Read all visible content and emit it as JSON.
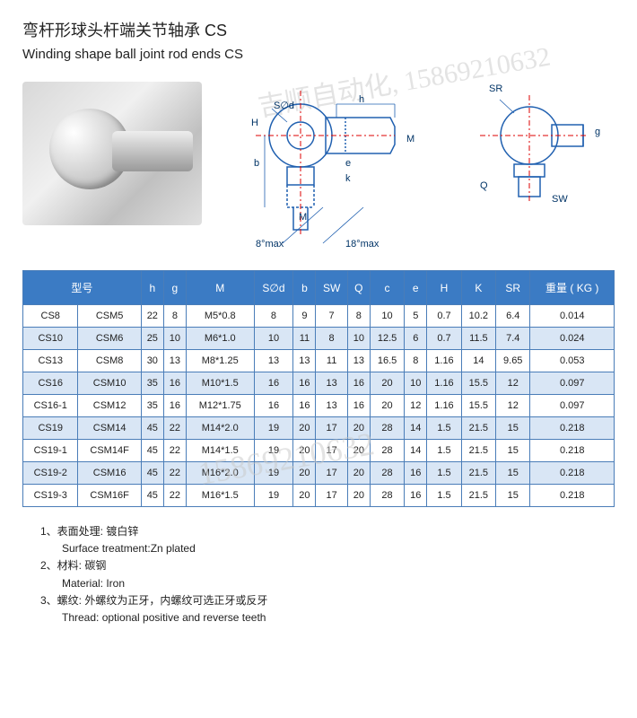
{
  "title_cn": "弯杆形球头杆端关节轴承 CS",
  "title_en": "Winding shape ball joint rod ends CS",
  "watermark": "吉顺自动化, 15869210632",
  "watermark2": "15869210632",
  "diagram_labels": {
    "h": "h",
    "Sd": "S∅d",
    "H": "H",
    "b": "b",
    "M": "M",
    "e": "e",
    "k": "k",
    "angle1": "8°max",
    "angle2": "18°max",
    "SR": "SR",
    "Q": "Q",
    "SW": "SW",
    "g": "g"
  },
  "columns": [
    "型号",
    "",
    "h",
    "g",
    "M",
    "S∅d",
    "b",
    "SW",
    "Q",
    "c",
    "e",
    "H",
    "K",
    "SR",
    "重量 ( KG )"
  ],
  "rows": [
    [
      "CS8",
      "CSM5",
      "22",
      "8",
      "M5*0.8",
      "8",
      "9",
      "7",
      "8",
      "10",
      "5",
      "0.7",
      "10.2",
      "6.4",
      "0.014"
    ],
    [
      "CS10",
      "CSM6",
      "25",
      "10",
      "M6*1.0",
      "10",
      "11",
      "8",
      "10",
      "12.5",
      "6",
      "0.7",
      "11.5",
      "7.4",
      "0.024"
    ],
    [
      "CS13",
      "CSM8",
      "30",
      "13",
      "M8*1.25",
      "13",
      "13",
      "11",
      "13",
      "16.5",
      "8",
      "1.16",
      "14",
      "9.65",
      "0.053"
    ],
    [
      "CS16",
      "CSM10",
      "35",
      "16",
      "M10*1.5",
      "16",
      "16",
      "13",
      "16",
      "20",
      "10",
      "1.16",
      "15.5",
      "12",
      "0.097"
    ],
    [
      "CS16-1",
      "CSM12",
      "35",
      "16",
      "M12*1.75",
      "16",
      "16",
      "13",
      "16",
      "20",
      "12",
      "1.16",
      "15.5",
      "12",
      "0.097"
    ],
    [
      "CS19",
      "CSM14",
      "45",
      "22",
      "M14*2.0",
      "19",
      "20",
      "17",
      "20",
      "28",
      "14",
      "1.5",
      "21.5",
      "15",
      "0.218"
    ],
    [
      "CS19-1",
      "CSM14F",
      "45",
      "22",
      "M14*1.5",
      "19",
      "20",
      "17",
      "20",
      "28",
      "14",
      "1.5",
      "21.5",
      "15",
      "0.218"
    ],
    [
      "CS19-2",
      "CSM16",
      "45",
      "22",
      "M16*2.0",
      "19",
      "20",
      "17",
      "20",
      "28",
      "16",
      "1.5",
      "21.5",
      "15",
      "0.218"
    ],
    [
      "CS19-3",
      "CSM16F",
      "45",
      "22",
      "M16*1.5",
      "19",
      "20",
      "17",
      "20",
      "28",
      "16",
      "1.5",
      "21.5",
      "15",
      "0.218"
    ]
  ],
  "notes": [
    {
      "cn": "1、表面处理: 镀白锌",
      "en": "Surface treatment:Zn plated"
    },
    {
      "cn": "2、材料: 碳钢",
      "en": "Material: Iron"
    },
    {
      "cn": "3、螺纹: 外螺纹为正牙，内螺纹可选正牙或反牙",
      "en": "Thread: optional positive and reverse teeth"
    }
  ],
  "colors": {
    "header_bg": "#3b7bc4",
    "border": "#4a7db8",
    "row_odd": "#d9e6f5",
    "row_even": "#ffffff",
    "diagram_line": "#2060b0"
  }
}
